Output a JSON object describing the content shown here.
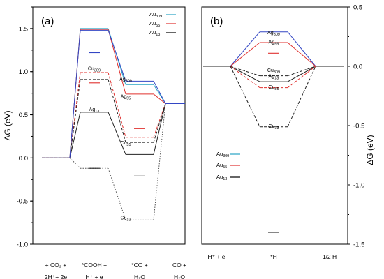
{
  "chart_data": [
    {
      "type": "line",
      "panel_label": "(a)",
      "ylabel": "ΔG (eV)",
      "ylim": [
        -1.0,
        1.75
      ],
      "yticks": [
        "1.5",
        "1.0",
        "0.5",
        "0.0",
        "-0.5",
        "-1.0"
      ],
      "categories": [
        [
          "+ CO₂ +",
          "2H⁺+ 2e"
        ],
        [
          "*COOH +",
          "H⁺ + e"
        ],
        [
          "*CO +",
          "H₂O"
        ],
        [
          "CO +",
          "H₂O"
        ]
      ],
      "legend": [
        {
          "label": "Au309",
          "base": "Au",
          "sub": "309",
          "color": "#29a3c4"
        },
        {
          "label": "Au55",
          "base": "Au",
          "sub": "55",
          "color": "#e0302e"
        },
        {
          "label": "Au13",
          "base": "Au",
          "sub": "13",
          "color": "#000000"
        }
      ],
      "series": [
        {
          "name": "Au309",
          "color": "#29a3c4",
          "dash": "solid",
          "values": [
            0.0,
            1.5,
            0.85,
            0.63
          ]
        },
        {
          "name": "Au55",
          "color": "#e0302e",
          "dash": "solid",
          "values": [
            0.0,
            1.49,
            0.74,
            0.63
          ]
        },
        {
          "name": "Au13",
          "color": "#222222",
          "dash": "solid",
          "values": [
            0.0,
            0.53,
            0.04,
            0.63
          ]
        },
        {
          "name": "Cu309",
          "color": "#e0302e",
          "dash": "dashed",
          "values": [
            0.0,
            0.99,
            0.24,
            0.63
          ]
        },
        {
          "name": "Cu55",
          "color": "#222222",
          "dash": "dashed",
          "values": [
            0.0,
            0.91,
            0.18,
            0.63
          ]
        },
        {
          "name": "Cu13",
          "color": "#555555",
          "dash": "dotted",
          "values": [
            0.0,
            -0.12,
            -0.72,
            0.63
          ]
        },
        {
          "name": "Ag309",
          "color": "#3346c4",
          "dash": "solid",
          "values": [
            0.0,
            1.48,
            0.89,
            0.63
          ]
        }
      ],
      "extra_levels": [
        {
          "category": 1,
          "value": 1.22,
          "color": "#3346c4"
        },
        {
          "category": 1,
          "value": 0.87,
          "color": "#e0302e"
        },
        {
          "category": 1,
          "value": -0.12,
          "color": "#222222"
        },
        {
          "category": 2,
          "value": 0.34,
          "color": "#e0302e"
        },
        {
          "category": 2,
          "value": -0.21,
          "color": "#222222"
        }
      ],
      "annotations": [
        {
          "base": "Cu",
          "sub": "309",
          "x": 1,
          "y": 1.0
        },
        {
          "base": "Ag",
          "sub": "13",
          "x": 1,
          "y": 0.53
        },
        {
          "base": "Ag",
          "sub": "309",
          "x": 2,
          "y": 0.88
        },
        {
          "base": "Ag",
          "sub": "55",
          "x": 2,
          "y": 0.68
        },
        {
          "base": "Cu",
          "sub": "55",
          "x": 2,
          "y": 0.14
        },
        {
          "base": "Cu",
          "sub": "13",
          "x": 2,
          "y": -0.73
        }
      ]
    },
    {
      "type": "line",
      "panel_label": "(b)",
      "ylabel": "ΔG (eV)",
      "ylim": [
        -1.5,
        0.5
      ],
      "yticks": [
        "0.5",
        "0.0",
        "-0.5",
        "-1.0",
        "-1.5"
      ],
      "categories": [
        [
          "H⁺ + e"
        ],
        [
          "*H"
        ],
        [
          "1/2 H"
        ]
      ],
      "legend": [
        {
          "label": "Au309",
          "base": "Au",
          "sub": "309",
          "color": "#29a3c4"
        },
        {
          "label": "Au55",
          "base": "Au",
          "sub": "55",
          "color": "#e0302e"
        },
        {
          "label": "Au13",
          "base": "Au",
          "sub": "13",
          "color": "#000000"
        }
      ],
      "series": [
        {
          "name": "Ag309",
          "color": "#3346c4",
          "dash": "solid",
          "values": [
            0.0,
            0.29,
            0.0
          ]
        },
        {
          "name": "Ag55",
          "color": "#e0302e",
          "dash": "solid",
          "values": [
            0.0,
            0.2,
            0.0
          ]
        },
        {
          "name": "Cu309",
          "color": "#222222",
          "dash": "dashed",
          "values": [
            0.0,
            -0.08,
            0.0
          ]
        },
        {
          "name": "Ag13",
          "color": "#222222",
          "dash": "solid",
          "values": [
            0.0,
            -0.13,
            0.0
          ]
        },
        {
          "name": "Cu55",
          "color": "#e0302e",
          "dash": "dashed",
          "values": [
            0.0,
            -0.18,
            0.0
          ]
        },
        {
          "name": "Cu13",
          "color": "#222222",
          "dash": "dashed",
          "values": [
            0.0,
            -0.51,
            0.0
          ]
        }
      ],
      "extra_levels": [
        {
          "category": 1,
          "value": 0.11,
          "color": "#e0302e"
        },
        {
          "category": 1,
          "value": -1.4,
          "color": "#222222"
        }
      ],
      "annotations": [
        {
          "base": "Ag",
          "sub": "309",
          "x": 1,
          "y": 0.26
        },
        {
          "base": "Ag",
          "sub": "55",
          "x": 1,
          "y": 0.18
        },
        {
          "base": "Cu",
          "sub": "309",
          "x": 1,
          "y": -0.06
        },
        {
          "base": "Ag",
          "sub": "13",
          "x": 1,
          "y": -0.11
        },
        {
          "base": "Cu",
          "sub": "55",
          "x": 1,
          "y": -0.2
        },
        {
          "base": "Cu",
          "sub": "13",
          "x": 1,
          "y": -0.53
        }
      ]
    }
  ]
}
